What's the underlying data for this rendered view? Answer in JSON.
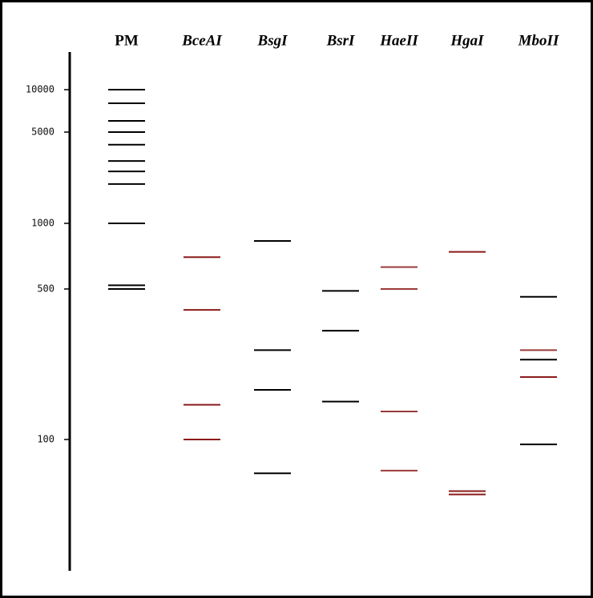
{
  "chart_data": {
    "type": "gel",
    "log_scale": true,
    "ylim": [
      25,
      20000
    ],
    "yticks": [
      100,
      500,
      1000,
      5000,
      10000
    ],
    "series": [
      {
        "name": "PM",
        "color": "#000000",
        "values": [
          10000,
          8000,
          6000,
          5000,
          4000,
          3000,
          2500,
          2000,
          1000,
          520,
          500
        ]
      },
      {
        "name": "BceAI",
        "color": "#8b1a1a",
        "values": [
          700,
          400,
          145,
          100
        ]
      },
      {
        "name": "BsgI",
        "color": "#000000",
        "values": [
          830,
          260,
          170,
          70
        ]
      },
      {
        "name": "BsrI",
        "color": "#000000",
        "values": [
          490,
          320,
          150
        ]
      },
      {
        "name": "HaeII",
        "color": "#9b3a3a",
        "values": [
          630,
          500,
          135,
          72
        ]
      },
      {
        "name": "HgaI",
        "color": "#8b1a1a",
        "values": [
          740,
          58,
          56
        ]
      },
      {
        "name": "MboII",
        "color": "#000000",
        "colors": [
          "#000000",
          "#9b3a3a",
          "#000000",
          "#8b1a1a",
          "#000000"
        ],
        "values": [
          460,
          260,
          235,
          195,
          95
        ]
      }
    ]
  }
}
